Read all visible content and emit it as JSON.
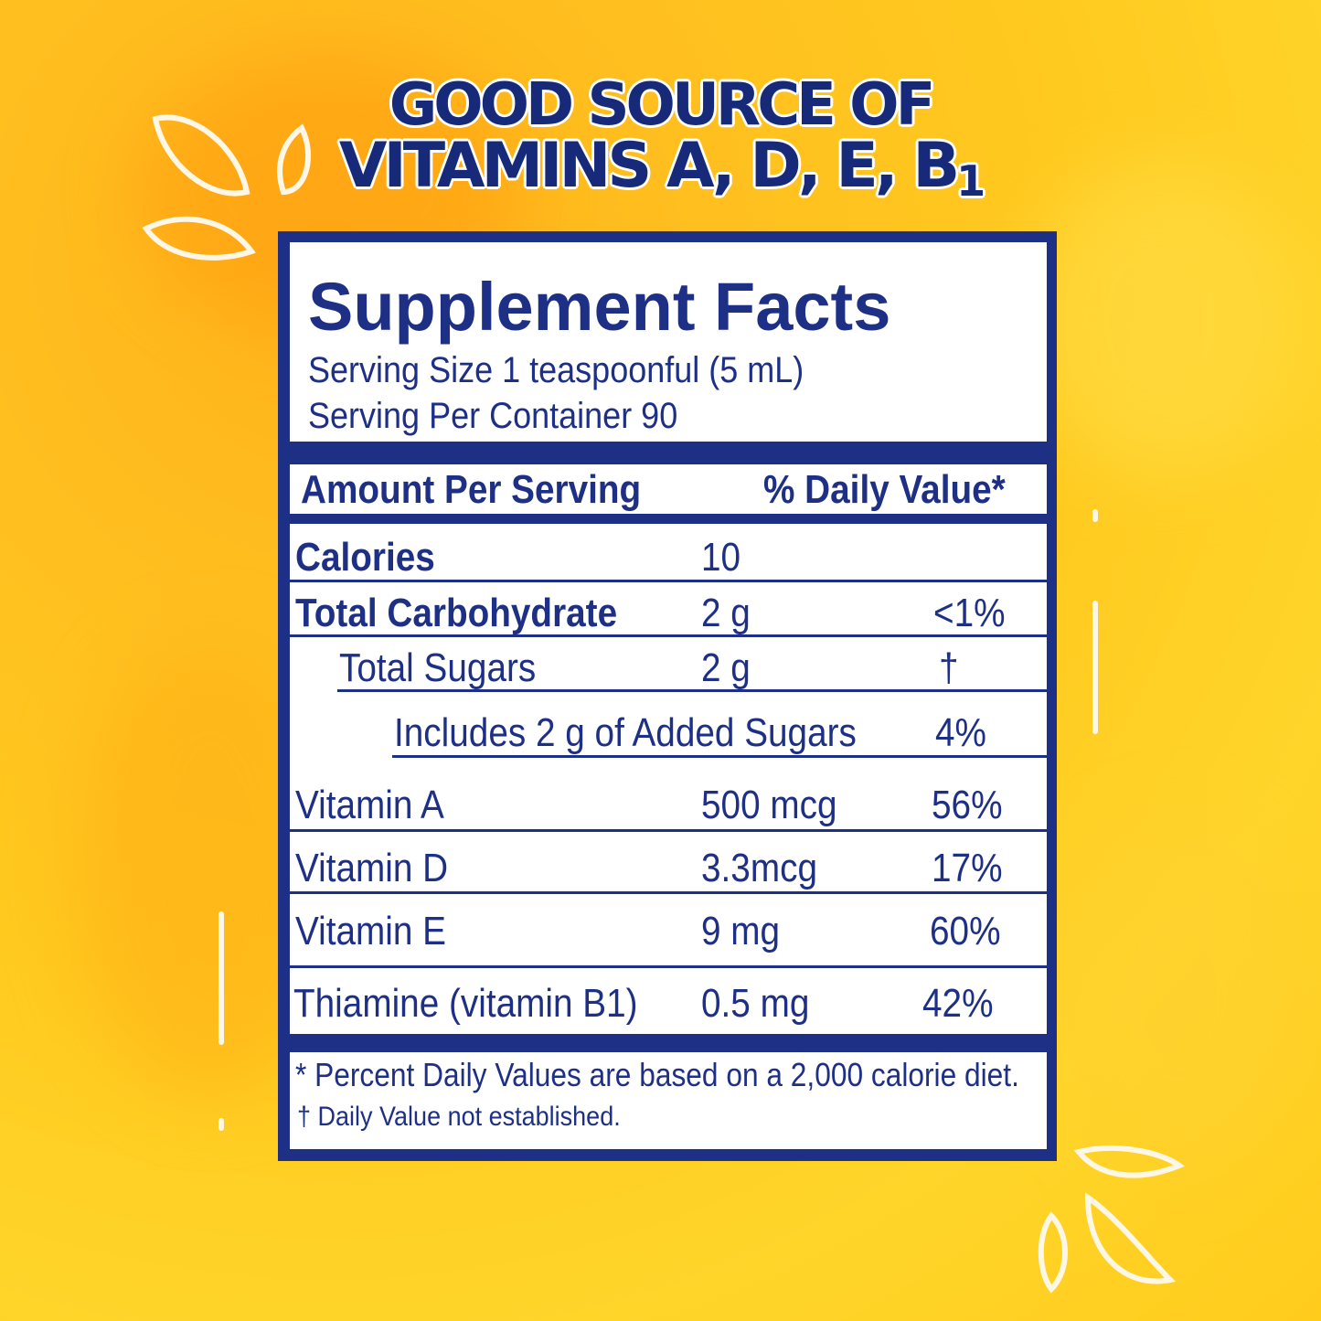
{
  "headline": {
    "line1": "GOOD SOURCE OF",
    "line2": "VITAMINS A, D, E, B",
    "line2_sub": "1"
  },
  "facts": {
    "title": "Supplement Facts",
    "serving_size": "Serving Size 1 teaspoonful (5 mL)",
    "servings_per_container": "Serving Per Container  90",
    "header_amount": "Amount Per Serving",
    "header_dv": "% Daily Value*",
    "rows": [
      {
        "name": "Calories",
        "amount": "10",
        "dv": ""
      },
      {
        "name": "Total Carbohydrate",
        "amount": "2 g",
        "dv": "<1%"
      },
      {
        "name": "Total Sugars",
        "amount": "2 g",
        "dv": "†"
      },
      {
        "name": "Includes  2 g of Added Sugars",
        "amount": "",
        "dv": "4%"
      },
      {
        "name": "Vitamin A",
        "amount": "500 mcg",
        "dv": "56%"
      },
      {
        "name": "Vitamin D",
        "amount": "3.3mcg",
        "dv": "17%"
      },
      {
        "name": "Vitamin E",
        "amount": "9 mg",
        "dv": "60%"
      },
      {
        "name": "Thiamine (vitamin B1)",
        "amount": "0.5 mg",
        "dv": "42%"
      }
    ],
    "footnote1": "* Percent Daily Values are based on a 2,000 calorie diet.",
    "footnote2": "† Daily Value  not established."
  },
  "colors": {
    "navy": "#1e2f86",
    "background": "#ffc21f",
    "panel_bg": "#ffffff"
  }
}
